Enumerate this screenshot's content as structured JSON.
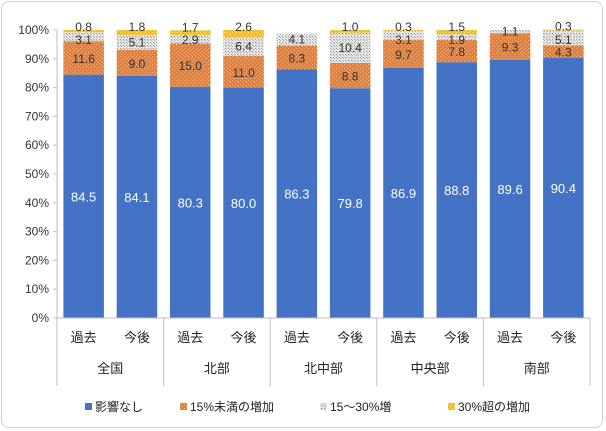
{
  "chart_data": {
    "type": "bar",
    "stacked": true,
    "percent": true,
    "categories": [
      "過去",
      "今後",
      "過去",
      "今後",
      "過去",
      "今後",
      "過去",
      "今後",
      "過去",
      "今後"
    ],
    "groups": [
      {
        "label": "全国",
        "span": [
          0,
          1
        ]
      },
      {
        "label": "北部",
        "span": [
          2,
          3
        ]
      },
      {
        "label": "北中部",
        "span": [
          4,
          5
        ]
      },
      {
        "label": "中央部",
        "span": [
          6,
          7
        ]
      },
      {
        "label": "南部",
        "span": [
          8,
          9
        ]
      }
    ],
    "series": [
      {
        "name": "影響なし",
        "color": "#4472c4",
        "values": [
          84.5,
          84.1,
          80.3,
          80.0,
          86.3,
          79.8,
          86.9,
          88.8,
          89.6,
          90.4
        ]
      },
      {
        "name": "15%未満の増加",
        "color": "#ed7d31",
        "values": [
          11.6,
          9.0,
          15.0,
          11.0,
          8.3,
          8.8,
          9.7,
          7.8,
          9.3,
          4.3
        ]
      },
      {
        "name": "15～30%増",
        "color": "#bfbfbf",
        "values": [
          3.1,
          5.1,
          2.9,
          6.4,
          4.1,
          10.4,
          3.1,
          1.9,
          1.1,
          5.1
        ]
      },
      {
        "name": "30%超の増加",
        "color": "#ffc000",
        "values": [
          0.8,
          1.8,
          1.7,
          2.6,
          0.0,
          1.0,
          0.3,
          1.5,
          0.0,
          0.3
        ]
      }
    ],
    "data_labels": [
      [
        "84.5",
        "84.1",
        "80.3",
        "80.0",
        "86.3",
        "79.8",
        "86.9",
        "88.8",
        "89.6",
        "90.4"
      ],
      [
        "11.6",
        "9.0",
        "15.0",
        "11.0",
        "8.3",
        "8.8",
        "9.7",
        "7.8",
        "9.3",
        "4.3"
      ],
      [
        "3.1",
        "5.1",
        "2.9",
        "6.4",
        "4.1",
        "10.4",
        "3.1",
        "1.9",
        "1.1",
        "5.1"
      ],
      [
        "0.8",
        "1.8",
        "1.7",
        "2.6",
        "",
        "1.0",
        "0.3",
        "1.5",
        "",
        "0.3"
      ]
    ],
    "y_ticks": [
      "0%",
      "10%",
      "20%",
      "30%",
      "40%",
      "50%",
      "60%",
      "70%",
      "80%",
      "90%",
      "100%"
    ],
    "ylim": [
      0,
      100
    ],
    "title": "",
    "xlabel": "",
    "ylabel": "",
    "grid": false,
    "legend_position": "bottom"
  }
}
